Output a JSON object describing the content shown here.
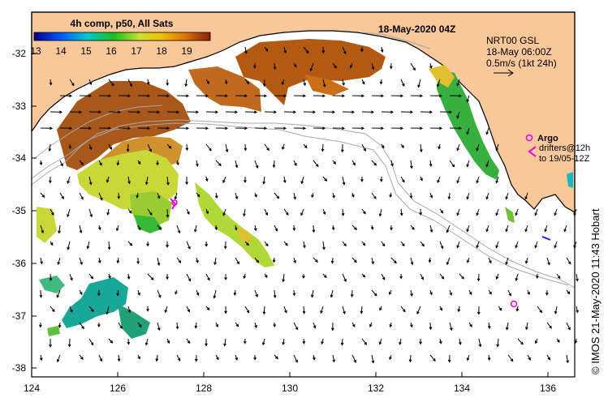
{
  "colorbar": {
    "title": "4h comp, p50, All Sats",
    "ticks": [
      "13",
      "14",
      "15",
      "16",
      "17",
      "18",
      "19"
    ],
    "colors": [
      "#00008b",
      "#0055ff",
      "#00c8d0",
      "#18c020",
      "#c8e030",
      "#f0c000",
      "#e07800",
      "#8b2000"
    ]
  },
  "header": {
    "date": "18-May-2020 04Z"
  },
  "nrt": {
    "line1": "NRT00 GSL",
    "line2": "18-May 06:00Z",
    "line3": "0.5m/s (1kt 24h)"
  },
  "legend": {
    "argo_label": "Argo",
    "drifter_line1": "drifters@12h",
    "drifter_line2": "to 19/05-12Z"
  },
  "credit": "© IMOS 21-May-2020 11:43 Hobart",
  "axes": {
    "x_ticks": [
      "124",
      "126",
      "128",
      "130",
      "132",
      "134",
      "136"
    ],
    "y_ticks": [
      "-32",
      "-33",
      "-34",
      "-35",
      "-36",
      "-37",
      "-38"
    ]
  },
  "colors": {
    "land": "#f8c89a",
    "argo": "#e000e0",
    "arrows": "#000000",
    "isobaths": "#a8a8a8"
  }
}
